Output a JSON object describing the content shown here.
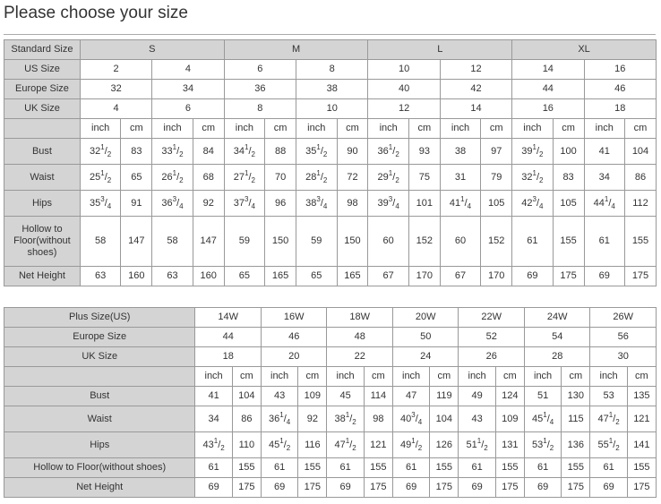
{
  "title": "Please choose your size",
  "table1": {
    "size_rows": [
      {
        "label": "Standard Size",
        "values": [
          "S",
          "M",
          "L",
          "XL"
        ],
        "span": 4
      },
      {
        "label": "US Size",
        "values": [
          "2",
          "4",
          "6",
          "8",
          "10",
          "12",
          "14",
          "16"
        ],
        "span": 2
      },
      {
        "label": "Europe Size",
        "values": [
          "32",
          "34",
          "36",
          "38",
          "40",
          "42",
          "44",
          "46"
        ],
        "span": 2
      },
      {
        "label": "UK Size",
        "values": [
          "4",
          "6",
          "8",
          "10",
          "12",
          "14",
          "16",
          "18"
        ],
        "span": 2
      }
    ],
    "unit_label": "",
    "units": [
      "inch",
      "cm"
    ],
    "measure_rows": [
      {
        "label": "Bust",
        "values": [
          "32 1/2",
          "83",
          "33 1/2",
          "84",
          "34 1/2",
          "88",
          "35 1/2",
          "90",
          "36 1/2",
          "93",
          "38",
          "97",
          "39 1/2",
          "100",
          "41",
          "104"
        ]
      },
      {
        "label": "Waist",
        "values": [
          "25 1/2",
          "65",
          "26 1/2",
          "68",
          "27 1/2",
          "70",
          "28 1/2",
          "72",
          "29 1/2",
          "75",
          "31",
          "79",
          "32 1/2",
          "83",
          "34",
          "86"
        ]
      },
      {
        "label": "Hips",
        "values": [
          "35 3/4",
          "91",
          "36 3/4",
          "92",
          "37 3/4",
          "96",
          "38 3/4",
          "98",
          "39 3/4",
          "101",
          "41 1/4",
          "105",
          "42 3/4",
          "105",
          "44 1/4",
          "112"
        ]
      },
      {
        "label": "Hollow to Floor(without shoes)",
        "values": [
          "58",
          "147",
          "58",
          "147",
          "59",
          "150",
          "59",
          "150",
          "60",
          "152",
          "60",
          "152",
          "61",
          "155",
          "61",
          "155"
        ]
      },
      {
        "label": "Net Height",
        "values": [
          "63",
          "160",
          "63",
          "160",
          "65",
          "165",
          "65",
          "165",
          "67",
          "170",
          "67",
          "170",
          "69",
          "175",
          "69",
          "175"
        ]
      }
    ]
  },
  "table2": {
    "size_rows": [
      {
        "label": "Plus Size(US)",
        "values": [
          "14W",
          "16W",
          "18W",
          "20W",
          "22W",
          "24W",
          "26W"
        ],
        "span": 2
      },
      {
        "label": "Europe Size",
        "values": [
          "44",
          "46",
          "48",
          "50",
          "52",
          "54",
          "56"
        ],
        "span": 2
      },
      {
        "label": "UK Size",
        "values": [
          "18",
          "20",
          "22",
          "24",
          "26",
          "28",
          "30"
        ],
        "span": 2
      }
    ],
    "unit_label": "",
    "units": [
      "inch",
      "cm"
    ],
    "measure_rows": [
      {
        "label": "Bust",
        "values": [
          "41",
          "104",
          "43",
          "109",
          "45",
          "114",
          "47",
          "119",
          "49",
          "124",
          "51",
          "130",
          "53",
          "135"
        ]
      },
      {
        "label": "Waist",
        "values": [
          "34",
          "86",
          "36 1/4",
          "92",
          "38 1/2",
          "98",
          "40 3/4",
          "104",
          "43",
          "109",
          "45 1/4",
          "115",
          "47 1/2",
          "121"
        ]
      },
      {
        "label": "Hips",
        "values": [
          "43 1/2",
          "110",
          "45 1/2",
          "116",
          "47 1/2",
          "121",
          "49 1/2",
          "126",
          "51 1/2",
          "131",
          "53 1/2",
          "136",
          "55 1/2",
          "141"
        ]
      },
      {
        "label": "Hollow to Floor(without shoes)",
        "values": [
          "61",
          "155",
          "61",
          "155",
          "61",
          "155",
          "61",
          "155",
          "61",
          "155",
          "61",
          "155",
          "61",
          "155"
        ]
      },
      {
        "label": "Net Height",
        "values": [
          "69",
          "175",
          "69",
          "175",
          "69",
          "175",
          "69",
          "175",
          "69",
          "175",
          "69",
          "175",
          "69",
          "175"
        ]
      }
    ]
  },
  "colors": {
    "header_bg": "#d4d4d4",
    "border": "#999999",
    "text": "#333333"
  }
}
